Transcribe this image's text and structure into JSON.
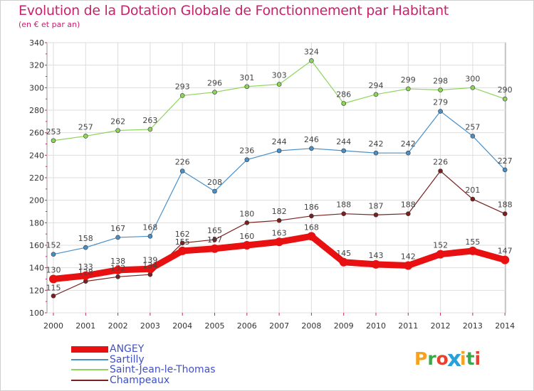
{
  "title": "Evolution de la Dotation Globale de Fonctionnement par Habitant",
  "subtitle": "(en € et par an)",
  "logo_text": "Proxiti",
  "logo_colors": [
    "#f6a21e",
    "#3aa84a",
    "#e8412d",
    "#2aa0d8",
    "#f6a21e",
    "#3aa84a",
    "#e8412d"
  ],
  "chart_data": {
    "type": "line",
    "title": "Evolution de la Dotation Globale de Fonctionnement par Habitant",
    "subtitle": "(en € et par an)",
    "x": [
      "2000",
      "2001",
      "2002",
      "2003",
      "2004",
      "2005",
      "2006",
      "2007",
      "2008",
      "2009",
      "2010",
      "2011",
      "2012",
      "2013",
      "2014"
    ],
    "y_ticks": [
      "100",
      "120",
      "140",
      "160",
      "180",
      "200",
      "220",
      "240",
      "260",
      "280",
      "300",
      "320",
      "340"
    ],
    "ylim": [
      100,
      340
    ],
    "grid": true,
    "legend_position": "bottom-left",
    "series": [
      {
        "name": "ANGEY",
        "color": "#e81010",
        "width": 9,
        "values": [
          130,
          133,
          138,
          139,
          155,
          157,
          160,
          163,
          168,
          145,
          143,
          142,
          152,
          155,
          147
        ],
        "labels": [
          "130",
          "133",
          "138",
          "139",
          "155",
          "157",
          "160",
          "163",
          "168",
          "145",
          "143",
          "142",
          "152",
          "155",
          "147"
        ]
      },
      {
        "name": "Sartilly",
        "color": "#4a90c8",
        "width": 1.2,
        "values": [
          152,
          158,
          167,
          168,
          226,
          208,
          236,
          244,
          246,
          244,
          242,
          242,
          279,
          257,
          227
        ],
        "labels": [
          "152",
          "158",
          "167",
          "168",
          "226",
          "208",
          "236",
          "244",
          "246",
          "244",
          "242",
          "242",
          "279",
          "257",
          "227"
        ]
      },
      {
        "name": "Saint-Jean-le-Thomas",
        "color": "#8ed45a",
        "width": 1.2,
        "values": [
          253,
          257,
          262,
          263,
          293,
          296,
          301,
          303,
          324,
          286,
          294,
          299,
          298,
          300,
          290
        ],
        "labels": [
          "253",
          "257",
          "262",
          "263",
          "293",
          "296",
          "301",
          "303",
          "324",
          "286",
          "294",
          "299",
          "298",
          "300",
          "290"
        ]
      },
      {
        "name": "Champeaux",
        "color": "#7a2020",
        "width": 1.2,
        "values": [
          115,
          128,
          132,
          134,
          162,
          165,
          180,
          182,
          186,
          188,
          187,
          188,
          226,
          201,
          188
        ],
        "labels": [
          "115",
          "128",
          "132",
          "134",
          "162",
          "165",
          "180",
          "182",
          "186",
          "188",
          "187",
          "188",
          "226",
          "201",
          "188"
        ]
      }
    ]
  }
}
